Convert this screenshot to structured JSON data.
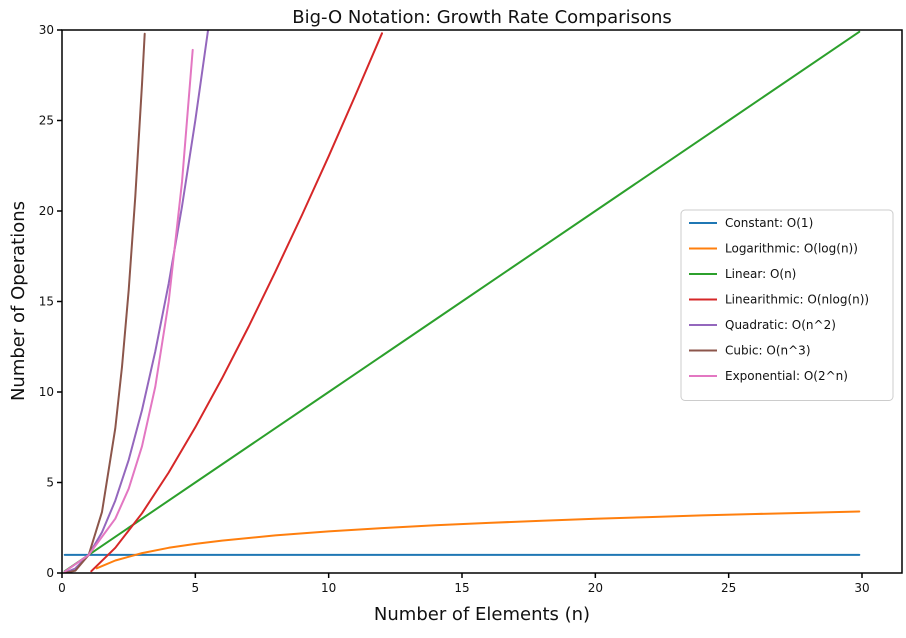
{
  "chart_data": {
    "type": "line",
    "title": "Big-O Notation: Growth Rate Comparisons",
    "xlabel": "Number of Elements (n)",
    "ylabel": "Number of Operations",
    "xlim": [
      0,
      31.5
    ],
    "ylim": [
      0,
      30
    ],
    "xticks": [
      0,
      5,
      10,
      15,
      20,
      25,
      30
    ],
    "yticks": [
      0,
      5,
      10,
      15,
      20,
      25,
      30
    ],
    "grid": false,
    "legend_position": "right",
    "series": [
      {
        "name": "Constant: O(1)",
        "color": "#1f77b4",
        "x": [
          0.1,
          1,
          2,
          4,
          6,
          8,
          10,
          12,
          14,
          16,
          18,
          20,
          22,
          24,
          26,
          28,
          29.9
        ],
        "y": [
          1,
          1,
          1,
          1,
          1,
          1,
          1,
          1,
          1,
          1,
          1,
          1,
          1,
          1,
          1,
          1,
          1
        ]
      },
      {
        "name": "Logarithmic: O(log(n))",
        "color": "#ff7f0e",
        "x": [
          1.3,
          2,
          3,
          4,
          5,
          6,
          8,
          10,
          12,
          14,
          16,
          18,
          20,
          22,
          24,
          26,
          28,
          29.9
        ],
        "y": [
          0.26,
          0.69,
          1.1,
          1.39,
          1.61,
          1.79,
          2.08,
          2.3,
          2.48,
          2.64,
          2.77,
          2.89,
          3.0,
          3.09,
          3.18,
          3.26,
          3.33,
          3.4
        ]
      },
      {
        "name": "Linear: O(n)",
        "color": "#2ca02c",
        "x": [
          0.1,
          5,
          10,
          15,
          20,
          25,
          29.9
        ],
        "y": [
          0.1,
          5,
          10,
          15,
          20,
          25,
          29.9
        ]
      },
      {
        "name": "Linearithmic: O(nlog(n))",
        "color": "#d62728",
        "x": [
          1.1,
          2,
          3,
          4,
          5,
          6,
          7,
          8,
          9,
          10,
          11,
          12
        ],
        "y": [
          0.1,
          1.39,
          3.3,
          5.55,
          8.05,
          10.75,
          13.62,
          16.64,
          19.78,
          23.03,
          26.38,
          29.82
        ]
      },
      {
        "name": "Quadratic: O(n^2)",
        "color": "#9467bd",
        "x": [
          0.1,
          0.5,
          1,
          1.5,
          2,
          2.5,
          3,
          3.5,
          4,
          4.5,
          5,
          5.5
        ],
        "y": [
          0.01,
          0.25,
          1,
          2.25,
          4,
          6.25,
          9,
          12.25,
          16,
          20.25,
          25,
          30.25
        ]
      },
      {
        "name": "Cubic: O(n^3)",
        "color": "#8c564b",
        "x": [
          0.1,
          0.5,
          1,
          1.5,
          2,
          2.25,
          2.5,
          2.75,
          3,
          3.1
        ],
        "y": [
          0.001,
          0.125,
          1,
          3.375,
          8,
          11.39,
          15.63,
          20.8,
          27,
          29.79
        ]
      },
      {
        "name": "Exponential: O(2^n)",
        "color": "#e377c2",
        "x": [
          0.1,
          1,
          2,
          2.5,
          3,
          3.5,
          4,
          4.5,
          4.9
        ],
        "y": [
          0.07,
          1,
          3,
          4.66,
          7,
          10.3,
          15,
          21.6,
          28.9
        ]
      }
    ]
  }
}
